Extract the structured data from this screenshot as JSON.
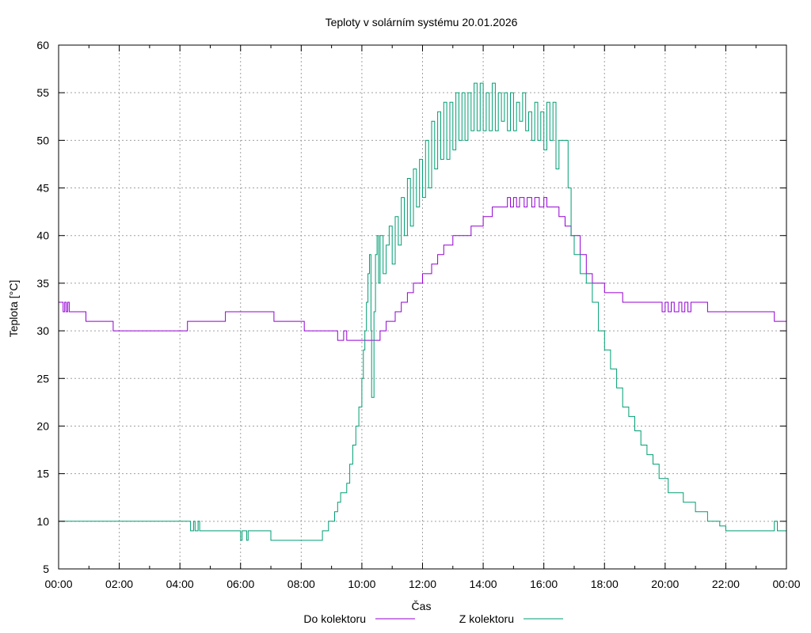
{
  "chart_data": {
    "type": "line",
    "title": "Teploty v solárním systému 20.01.2026",
    "xlabel": "Čas",
    "ylabel": "Teplota [°C]",
    "xlim": [
      0,
      24
    ],
    "ylim": [
      5,
      60
    ],
    "grid": true,
    "legend_placement": "bottom-center",
    "x_ticks": [
      {
        "value": 0,
        "label": "00:00"
      },
      {
        "value": 2,
        "label": "02:00"
      },
      {
        "value": 4,
        "label": "04:00"
      },
      {
        "value": 6,
        "label": "06:00"
      },
      {
        "value": 8,
        "label": "08:00"
      },
      {
        "value": 10,
        "label": "10:00"
      },
      {
        "value": 12,
        "label": "12:00"
      },
      {
        "value": 14,
        "label": "14:00"
      },
      {
        "value": 16,
        "label": "16:00"
      },
      {
        "value": 18,
        "label": "18:00"
      },
      {
        "value": 20,
        "label": "20:00"
      },
      {
        "value": 22,
        "label": "22:00"
      },
      {
        "value": 24,
        "label": "00:00"
      }
    ],
    "y_ticks": [
      {
        "value": 5,
        "label": "5"
      },
      {
        "value": 10,
        "label": "10"
      },
      {
        "value": 15,
        "label": "15"
      },
      {
        "value": 20,
        "label": "20"
      },
      {
        "value": 25,
        "label": "25"
      },
      {
        "value": 30,
        "label": "30"
      },
      {
        "value": 35,
        "label": "35"
      },
      {
        "value": 40,
        "label": "40"
      },
      {
        "value": 45,
        "label": "45"
      },
      {
        "value": 50,
        "label": "50"
      },
      {
        "value": 55,
        "label": "55"
      },
      {
        "value": 60,
        "label": "60"
      }
    ],
    "series": [
      {
        "name": "Do kolektoru",
        "color": "#9400d3",
        "points": [
          [
            0,
            33
          ],
          [
            0.15,
            32
          ],
          [
            0.2,
            33
          ],
          [
            0.25,
            32
          ],
          [
            0.3,
            33
          ],
          [
            0.35,
            32
          ],
          [
            0.9,
            31
          ],
          [
            1.8,
            30
          ],
          [
            4.25,
            31
          ],
          [
            5.5,
            32
          ],
          [
            7.1,
            31
          ],
          [
            8.1,
            30
          ],
          [
            9.2,
            29
          ],
          [
            9.4,
            30
          ],
          [
            9.5,
            29
          ],
          [
            10.6,
            30
          ],
          [
            10.8,
            31
          ],
          [
            11.1,
            32
          ],
          [
            11.3,
            33
          ],
          [
            11.5,
            34
          ],
          [
            11.7,
            35
          ],
          [
            12.0,
            36
          ],
          [
            12.3,
            37
          ],
          [
            12.5,
            38
          ],
          [
            12.7,
            39
          ],
          [
            13.0,
            40
          ],
          [
            13.6,
            41
          ],
          [
            14.0,
            42
          ],
          [
            14.3,
            43
          ],
          [
            14.8,
            44
          ],
          [
            14.9,
            43
          ],
          [
            15.0,
            44
          ],
          [
            15.1,
            43
          ],
          [
            15.2,
            44
          ],
          [
            15.35,
            43
          ],
          [
            15.45,
            44
          ],
          [
            15.6,
            43
          ],
          [
            15.7,
            44
          ],
          [
            15.85,
            43
          ],
          [
            16.0,
            44
          ],
          [
            16.1,
            43
          ],
          [
            16.5,
            42
          ],
          [
            16.7,
            41
          ],
          [
            16.9,
            40
          ],
          [
            17.2,
            38
          ],
          [
            17.4,
            36
          ],
          [
            17.6,
            35
          ],
          [
            18.0,
            34
          ],
          [
            18.6,
            33
          ],
          [
            19.9,
            32
          ],
          [
            20.0,
            33
          ],
          [
            20.1,
            32
          ],
          [
            20.2,
            33
          ],
          [
            20.3,
            32
          ],
          [
            20.45,
            33
          ],
          [
            20.55,
            32
          ],
          [
            20.65,
            33
          ],
          [
            20.75,
            32
          ],
          [
            20.85,
            33
          ],
          [
            21.4,
            32
          ],
          [
            23.6,
            31
          ],
          [
            24,
            31
          ]
        ]
      },
      {
        "name": "Z kolektoru",
        "color": "#009e73",
        "points": [
          [
            0,
            10
          ],
          [
            4.35,
            9
          ],
          [
            4.45,
            10
          ],
          [
            4.5,
            9
          ],
          [
            4.6,
            10
          ],
          [
            4.65,
            9
          ],
          [
            6.0,
            8
          ],
          [
            6.05,
            9
          ],
          [
            6.2,
            8
          ],
          [
            6.25,
            9
          ],
          [
            7.0,
            8
          ],
          [
            8.7,
            9
          ],
          [
            8.9,
            10
          ],
          [
            9.1,
            11
          ],
          [
            9.2,
            12
          ],
          [
            9.3,
            13
          ],
          [
            9.5,
            14
          ],
          [
            9.6,
            16
          ],
          [
            9.7,
            18
          ],
          [
            9.8,
            20
          ],
          [
            9.9,
            22
          ],
          [
            10.0,
            25
          ],
          [
            10.05,
            28
          ],
          [
            10.1,
            30
          ],
          [
            10.15,
            33
          ],
          [
            10.2,
            36
          ],
          [
            10.25,
            38
          ],
          [
            10.3,
            30
          ],
          [
            10.32,
            23
          ],
          [
            10.4,
            32
          ],
          [
            10.45,
            38
          ],
          [
            10.5,
            40
          ],
          [
            10.55,
            35
          ],
          [
            10.6,
            40
          ],
          [
            10.7,
            36
          ],
          [
            10.8,
            39
          ],
          [
            10.9,
            41
          ],
          [
            11.0,
            37
          ],
          [
            11.1,
            42
          ],
          [
            11.2,
            39
          ],
          [
            11.3,
            44
          ],
          [
            11.4,
            40
          ],
          [
            11.5,
            46
          ],
          [
            11.6,
            41
          ],
          [
            11.7,
            47
          ],
          [
            11.8,
            43
          ],
          [
            11.9,
            48
          ],
          [
            12.0,
            44
          ],
          [
            12.1,
            50
          ],
          [
            12.2,
            45
          ],
          [
            12.3,
            52
          ],
          [
            12.4,
            47
          ],
          [
            12.5,
            53
          ],
          [
            12.6,
            48
          ],
          [
            12.7,
            54
          ],
          [
            12.8,
            48
          ],
          [
            12.9,
            54
          ],
          [
            13.0,
            49
          ],
          [
            13.1,
            55
          ],
          [
            13.2,
            50
          ],
          [
            13.3,
            55
          ],
          [
            13.4,
            50
          ],
          [
            13.5,
            55
          ],
          [
            13.6,
            51
          ],
          [
            13.7,
            56
          ],
          [
            13.8,
            51
          ],
          [
            13.9,
            56
          ],
          [
            14.0,
            51
          ],
          [
            14.1,
            55
          ],
          [
            14.2,
            51
          ],
          [
            14.3,
            56
          ],
          [
            14.4,
            51
          ],
          [
            14.5,
            55
          ],
          [
            14.6,
            52
          ],
          [
            14.7,
            55
          ],
          [
            14.8,
            51
          ],
          [
            14.9,
            55
          ],
          [
            15.0,
            51
          ],
          [
            15.1,
            54
          ],
          [
            15.2,
            52
          ],
          [
            15.3,
            55
          ],
          [
            15.4,
            51
          ],
          [
            15.5,
            53
          ],
          [
            15.6,
            50
          ],
          [
            15.7,
            54
          ],
          [
            15.8,
            50
          ],
          [
            15.9,
            53
          ],
          [
            16.0,
            49
          ],
          [
            16.1,
            54
          ],
          [
            16.2,
            50
          ],
          [
            16.3,
            54
          ],
          [
            16.4,
            47
          ],
          [
            16.5,
            50
          ],
          [
            16.6,
            50
          ],
          [
            16.8,
            45
          ],
          [
            16.9,
            40
          ],
          [
            17.0,
            38
          ],
          [
            17.2,
            36
          ],
          [
            17.4,
            35
          ],
          [
            17.6,
            33
          ],
          [
            17.8,
            30
          ],
          [
            18.0,
            28
          ],
          [
            18.2,
            26
          ],
          [
            18.4,
            24
          ],
          [
            18.6,
            22
          ],
          [
            18.8,
            21
          ],
          [
            19.0,
            19.5
          ],
          [
            19.2,
            18
          ],
          [
            19.4,
            17
          ],
          [
            19.6,
            16
          ],
          [
            19.8,
            14.5
          ],
          [
            20.1,
            13
          ],
          [
            20.6,
            12
          ],
          [
            21.0,
            11
          ],
          [
            21.4,
            10
          ],
          [
            21.8,
            9.5
          ],
          [
            22.0,
            9
          ],
          [
            23.5,
            9
          ],
          [
            23.6,
            10
          ],
          [
            23.7,
            9
          ],
          [
            24,
            9
          ]
        ]
      }
    ]
  }
}
